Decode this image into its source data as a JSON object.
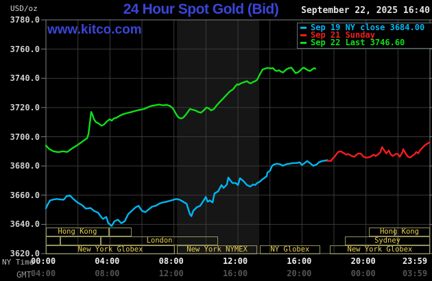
{
  "header": {
    "unit": "USD/oz",
    "title": "24 Hour Spot Gold (Bid)",
    "datetime": "September 22, 2025 16:40",
    "watermark": "www.kitco.com"
  },
  "legend": {
    "entries": [
      {
        "label": "Sep 19 NY close 3684.00",
        "color": "#00b7f3"
      },
      {
        "label": "Sep 21 Sunday",
        "color": "#f51d1d"
      },
      {
        "label": "Sep 22 Last 3746.60",
        "color": "#0fe017"
      }
    ]
  },
  "axes": {
    "ny_time_label": "NY Time",
    "gmt_label": "GMT",
    "y_tick_labels": [
      "3780.0",
      "3760.0",
      "3740.0",
      "3720.0",
      "3700.0",
      "3680.0",
      "3660.0",
      "3640.0",
      "3620.0"
    ],
    "ny_ticks": [
      "00:00",
      "04:00",
      "08:00",
      "12:00",
      "16:00",
      "20:00",
      "23:59"
    ],
    "gmt_ticks": [
      "04:00",
      "08:00",
      "12:00",
      "16:00",
      "20:00",
      "00:00",
      "03:59"
    ]
  },
  "sessions": {
    "rows": [
      {
        "boxes": [
          {
            "start": 0,
            "end": 3.94,
            "label": "Hong Kong"
          },
          {
            "start": 3.94,
            "end": 5.36,
            "label": ""
          },
          {
            "start": 20.19,
            "end": 24,
            "label": "Hong Kong"
          }
        ],
        "dividers": [
          21.77
        ]
      },
      {
        "boxes": [
          {
            "start": 0,
            "end": 0.9,
            "label": ""
          },
          {
            "start": 0.9,
            "end": 3.43,
            "label": ""
          },
          {
            "start": 3.43,
            "end": 10.76,
            "label": "London"
          },
          {
            "start": 18.69,
            "end": 24,
            "label": "Sydney"
          }
        ],
        "dividers": [
          21.99
        ]
      },
      {
        "boxes": [
          {
            "start": 0,
            "end": 8.06,
            "label": "New York Globex"
          },
          {
            "start": 8.19,
            "end": 13.2,
            "label": "New York NYMEX"
          },
          {
            "start": 13.37,
            "end": 17.14,
            "label": "NY Globex"
          },
          {
            "start": 17.74,
            "end": 24,
            "label": "New York Globex"
          }
        ],
        "dividers": []
      }
    ]
  },
  "chart_data": {
    "type": "line",
    "title": "24 Hour Spot Gold (Bid)",
    "ylabel": "USD/oz",
    "ylim": [
      3620,
      3780
    ],
    "y_tick_step": 20,
    "x_range_hours": [
      0,
      24
    ],
    "x_grid_interval_hours": 2,
    "grid": true,
    "legend_position": "top-right",
    "nymex_session_band_hours": [
      8.19,
      13.33
    ],
    "series": [
      {
        "name": "Sep 19 NY close",
        "color": "#00b7f3",
        "close_value": 3684.0,
        "points": [
          [
            0,
            3651
          ],
          [
            0.13,
            3654
          ],
          [
            0.26,
            3656.4
          ],
          [
            0.47,
            3657
          ],
          [
            0.69,
            3657.4
          ],
          [
            0.9,
            3657
          ],
          [
            1.11,
            3656.9
          ],
          [
            1.29,
            3659.3
          ],
          [
            1.5,
            3659.8
          ],
          [
            1.71,
            3657.4
          ],
          [
            1.97,
            3655
          ],
          [
            2.27,
            3653.1
          ],
          [
            2.49,
            3650.8
          ],
          [
            2.79,
            3651.2
          ],
          [
            3,
            3649.3
          ],
          [
            3.26,
            3647.9
          ],
          [
            3.43,
            3645.5
          ],
          [
            3.56,
            3643.7
          ],
          [
            3.77,
            3645.1
          ],
          [
            3.9,
            3640.8
          ],
          [
            4.11,
            3638.9
          ],
          [
            4.29,
            3642.2
          ],
          [
            4.5,
            3643.2
          ],
          [
            4.71,
            3640.8
          ],
          [
            4.93,
            3642.2
          ],
          [
            5.14,
            3647
          ],
          [
            5.36,
            3649.3
          ],
          [
            5.61,
            3651.7
          ],
          [
            5.79,
            3652.7
          ],
          [
            6,
            3649.3
          ],
          [
            6.21,
            3648.4
          ],
          [
            6.43,
            3650.3
          ],
          [
            6.64,
            3652.2
          ],
          [
            6.86,
            3652.7
          ],
          [
            7.07,
            3654.1
          ],
          [
            7.29,
            3655
          ],
          [
            7.54,
            3655.5
          ],
          [
            7.84,
            3656.4
          ],
          [
            8.14,
            3657.4
          ],
          [
            8.36,
            3656.9
          ],
          [
            8.57,
            3655.5
          ],
          [
            8.79,
            3654.1
          ],
          [
            8.91,
            3650
          ],
          [
            9,
            3647
          ],
          [
            9.09,
            3645.6
          ],
          [
            9.21,
            3649.3
          ],
          [
            9.43,
            3651.7
          ],
          [
            9.64,
            3652.7
          ],
          [
            9.86,
            3656.4
          ],
          [
            9.99,
            3658.8
          ],
          [
            10.11,
            3655.5
          ],
          [
            10.24,
            3656.4
          ],
          [
            10.41,
            3655
          ],
          [
            10.54,
            3661.2
          ],
          [
            10.76,
            3662.6
          ],
          [
            10.97,
            3666.9
          ],
          [
            11.1,
            3665
          ],
          [
            11.31,
            3667.3
          ],
          [
            11.4,
            3672.1
          ],
          [
            11.49,
            3670.6
          ],
          [
            11.66,
            3668.3
          ],
          [
            11.87,
            3668.3
          ],
          [
            12,
            3666.9
          ],
          [
            12.13,
            3671.6
          ],
          [
            12.34,
            3669.7
          ],
          [
            12.56,
            3666.9
          ],
          [
            12.77,
            3665.9
          ],
          [
            12.94,
            3667.3
          ],
          [
            13.07,
            3666.9
          ],
          [
            13.2,
            3668.3
          ],
          [
            13.37,
            3669.2
          ],
          [
            13.5,
            3670.6
          ],
          [
            13.63,
            3671.6
          ],
          [
            13.8,
            3673
          ],
          [
            13.84,
            3675.4
          ],
          [
            14.01,
            3676.8
          ],
          [
            14.14,
            3680.1
          ],
          [
            14.27,
            3681.1
          ],
          [
            14.44,
            3681.5
          ],
          [
            14.66,
            3681.1
          ],
          [
            14.79,
            3680.1
          ],
          [
            15,
            3681.1
          ],
          [
            15.21,
            3681.5
          ],
          [
            15.43,
            3682
          ],
          [
            15.64,
            3682
          ],
          [
            15.86,
            3682.5
          ],
          [
            15.99,
            3680.6
          ],
          [
            16.11,
            3681.5
          ],
          [
            16.33,
            3683.4
          ],
          [
            16.5,
            3682
          ],
          [
            16.71,
            3680.1
          ],
          [
            16.93,
            3681.1
          ],
          [
            17.06,
            3682.5
          ],
          [
            17.27,
            3683.4
          ],
          [
            17.49,
            3683.7
          ],
          [
            17.57,
            3684
          ]
        ]
      },
      {
        "name": "Sep 21 Sunday",
        "color": "#f51d1d",
        "points": [
          [
            17.57,
            3683.5
          ],
          [
            17.83,
            3683.5
          ],
          [
            17.91,
            3685
          ],
          [
            18.04,
            3686.3
          ],
          [
            18.26,
            3689.6
          ],
          [
            18.43,
            3690
          ],
          [
            18.64,
            3688.6
          ],
          [
            18.77,
            3687.7
          ],
          [
            18.9,
            3688.2
          ],
          [
            19.11,
            3686.8
          ],
          [
            19.29,
            3686.3
          ],
          [
            19.41,
            3687.7
          ],
          [
            19.54,
            3688.6
          ],
          [
            19.71,
            3688.2
          ],
          [
            19.84,
            3686.3
          ],
          [
            19.97,
            3685.8
          ],
          [
            20.14,
            3685.8
          ],
          [
            20.27,
            3686.3
          ],
          [
            20.49,
            3687.7
          ],
          [
            20.61,
            3686.8
          ],
          [
            20.79,
            3688.2
          ],
          [
            20.91,
            3689.6
          ],
          [
            21,
            3692.9
          ],
          [
            21.13,
            3691
          ],
          [
            21.26,
            3688.6
          ],
          [
            21.43,
            3690.5
          ],
          [
            21.56,
            3687.7
          ],
          [
            21.69,
            3686.8
          ],
          [
            21.86,
            3688.2
          ],
          [
            21.99,
            3688.2
          ],
          [
            22.11,
            3686.3
          ],
          [
            22.29,
            3689.6
          ],
          [
            22.33,
            3691.5
          ],
          [
            22.5,
            3688.2
          ],
          [
            22.63,
            3686.3
          ],
          [
            22.76,
            3685.8
          ],
          [
            22.93,
            3687.2
          ],
          [
            23.06,
            3688.2
          ],
          [
            23.14,
            3689.6
          ],
          [
            23.27,
            3688.6
          ],
          [
            23.4,
            3691
          ],
          [
            23.57,
            3692.9
          ],
          [
            23.7,
            3694.3
          ],
          [
            23.83,
            3695.2
          ],
          [
            23.96,
            3696.1
          ]
        ]
      },
      {
        "name": "Sep 22",
        "color": "#0fe017",
        "last_value": 3746.6,
        "points": [
          [
            0,
            3694
          ],
          [
            0.21,
            3691.5
          ],
          [
            0.47,
            3690
          ],
          [
            0.77,
            3689.5
          ],
          [
            1.07,
            3690
          ],
          [
            1.33,
            3689.6
          ],
          [
            1.63,
            3692
          ],
          [
            1.93,
            3694
          ],
          [
            2.19,
            3696
          ],
          [
            2.44,
            3698
          ],
          [
            2.57,
            3699
          ],
          [
            2.66,
            3702
          ],
          [
            2.74,
            3709
          ],
          [
            2.83,
            3717
          ],
          [
            2.91,
            3715
          ],
          [
            3,
            3712
          ],
          [
            3.13,
            3710
          ],
          [
            3.3,
            3709
          ],
          [
            3.47,
            3707.5
          ],
          [
            3.64,
            3708.5
          ],
          [
            3.81,
            3710.5
          ],
          [
            3.99,
            3712
          ],
          [
            4.11,
            3711
          ],
          [
            4.24,
            3712.5
          ],
          [
            4.41,
            3713
          ],
          [
            4.63,
            3714.5
          ],
          [
            4.84,
            3715.5
          ],
          [
            5.01,
            3716
          ],
          [
            5.19,
            3716.5
          ],
          [
            5.36,
            3717
          ],
          [
            5.53,
            3717.5
          ],
          [
            5.7,
            3718
          ],
          [
            5.91,
            3718.5
          ],
          [
            6.13,
            3719
          ],
          [
            6.34,
            3720
          ],
          [
            6.56,
            3721
          ],
          [
            6.81,
            3721.5
          ],
          [
            7.07,
            3722
          ],
          [
            7.33,
            3721.5
          ],
          [
            7.54,
            3721.8
          ],
          [
            7.76,
            3721
          ],
          [
            7.93,
            3719.5
          ],
          [
            8.06,
            3717
          ],
          [
            8.19,
            3714.5
          ],
          [
            8.31,
            3713
          ],
          [
            8.44,
            3712.5
          ],
          [
            8.57,
            3713
          ],
          [
            8.7,
            3714.5
          ],
          [
            8.87,
            3717
          ],
          [
            9,
            3719
          ],
          [
            9.17,
            3718.5
          ],
          [
            9.34,
            3718
          ],
          [
            9.51,
            3717
          ],
          [
            9.69,
            3716.5
          ],
          [
            9.86,
            3718
          ],
          [
            10.03,
            3720
          ],
          [
            10.16,
            3719.5
          ],
          [
            10.33,
            3718
          ],
          [
            10.5,
            3719
          ],
          [
            10.67,
            3721.5
          ],
          [
            10.84,
            3723.5
          ],
          [
            11.06,
            3726
          ],
          [
            11.27,
            3728.5
          ],
          [
            11.49,
            3731
          ],
          [
            11.7,
            3732.5
          ],
          [
            11.83,
            3734.5
          ],
          [
            11.96,
            3736
          ],
          [
            12.04,
            3735.5
          ],
          [
            12.17,
            3736.5
          ],
          [
            12.3,
            3737
          ],
          [
            12.43,
            3737.5
          ],
          [
            12.56,
            3738
          ],
          [
            12.69,
            3737
          ],
          [
            12.81,
            3736.5
          ],
          [
            12.94,
            3737.5
          ],
          [
            13.07,
            3738
          ],
          [
            13.2,
            3739
          ],
          [
            13.29,
            3741
          ],
          [
            13.41,
            3743.5
          ],
          [
            13.54,
            3746
          ],
          [
            13.67,
            3746.5
          ],
          [
            13.8,
            3747
          ],
          [
            13.93,
            3747
          ],
          [
            14.06,
            3746.8
          ],
          [
            14.19,
            3747
          ],
          [
            14.31,
            3745.5
          ],
          [
            14.44,
            3745
          ],
          [
            14.57,
            3745.5
          ],
          [
            14.7,
            3744.5
          ],
          [
            14.83,
            3744
          ],
          [
            14.96,
            3745.5
          ],
          [
            15.09,
            3746.5
          ],
          [
            15.21,
            3747
          ],
          [
            15.34,
            3747.3
          ],
          [
            15.47,
            3745.5
          ],
          [
            15.6,
            3743.5
          ],
          [
            15.73,
            3744
          ],
          [
            15.86,
            3745
          ],
          [
            15.99,
            3746.5
          ],
          [
            16.11,
            3747.3
          ],
          [
            16.24,
            3746.5
          ],
          [
            16.37,
            3745.5
          ],
          [
            16.5,
            3745
          ],
          [
            16.63,
            3746
          ],
          [
            16.76,
            3747
          ],
          [
            16.84,
            3746.6
          ]
        ]
      }
    ]
  },
  "style": {
    "background": "#000000",
    "grid_color": "#3a3a3a",
    "border_color": "#808080",
    "band_color": "#161616",
    "title_color": "#3a46d8",
    "session_border_color": "#93935c",
    "session_text_color": "#e8cf52"
  }
}
